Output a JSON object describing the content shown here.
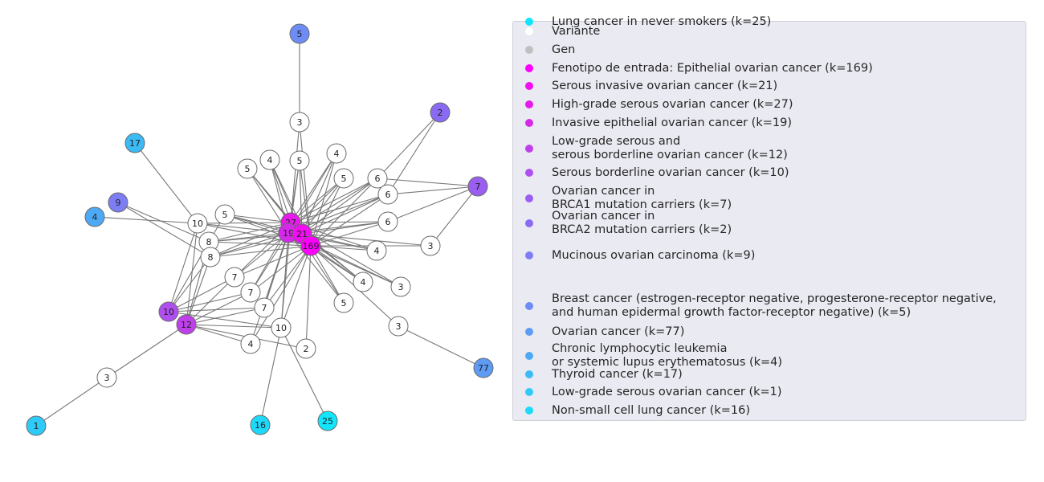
{
  "colors": {
    "variant": "#ffffff",
    "gene": "#c8c8c8",
    "edge": "#777777",
    "node_stroke": "#6b6b6b"
  },
  "legend": [
    {
      "label": "Variante",
      "color": "#ffffff"
    },
    {
      "label": "Gen",
      "color": "#c0c0c0"
    },
    {
      "label": "Fenotipo de entrada: Epithelial ovarian cancer (k=169)",
      "color": "#ff00ff"
    },
    {
      "label": "Serous invasive ovarian cancer (k=21)",
      "color": "#f20ef2"
    },
    {
      "label": "High-grade serous ovarian cancer (k=27)",
      "color": "#e61aeb"
    },
    {
      "label": "Invasive epithelial ovarian cancer (k=19)",
      "color": "#d529ea"
    },
    {
      "label": "Low-grade serous and\nserous borderline ovarian cancer (k=12)",
      "color": "#bf40ea"
    },
    {
      "label": "Serous borderline ovarian cancer (k=10)",
      "color": "#b04ff0"
    },
    {
      "label": "Ovarian cancer in\nBRCA1 mutation carriers (k=7)",
      "color": "#9a5ef0"
    },
    {
      "label": "Ovarian cancer in\nBRCA2 mutation carriers (k=2)",
      "color": "#8a6af2"
    },
    {
      "label": "Mucinous ovarian carcinoma (k=9)",
      "color": "#7d7df5"
    },
    {
      "label": "Breast cancer (estrogen-receptor negative, progesterone-receptor negative,\nand human epidermal growth factor-receptor negative) (k=5)",
      "color": "#6e8cf5"
    },
    {
      "label": "Ovarian cancer (k=77)",
      "color": "#5e9bf5"
    },
    {
      "label": "Chronic lymphocytic leukemia\nor systemic lupus erythematosus (k=4)",
      "color": "#4ea9f5"
    },
    {
      "label": "Thyroid cancer (k=17)",
      "color": "#3cbaf5"
    },
    {
      "label": "Low-grade serous ovarian cancer (k=1)",
      "color": "#2ecbf8"
    },
    {
      "label": "Non-small cell lung cancer (k=16)",
      "color": "#1ed9fa"
    },
    {
      "label": "Lung cancer in never smokers (k=25)",
      "color": "#12e6fc"
    }
  ],
  "graph": {
    "nodes": [
      {
        "id": "p5",
        "label": "5",
        "color": "#6e8cf5"
      },
      {
        "id": "p2",
        "label": "2",
        "color": "#8a6af2"
      },
      {
        "id": "p7",
        "label": "7",
        "color": "#9a5ef0"
      },
      {
        "id": "p17",
        "label": "17",
        "color": "#3cbaf5"
      },
      {
        "id": "p9",
        "label": "9",
        "color": "#7d7df5"
      },
      {
        "id": "p4",
        "label": "4",
        "color": "#4ea9f5"
      },
      {
        "id": "p10",
        "label": "10",
        "color": "#b04ff0"
      },
      {
        "id": "p12",
        "label": "12",
        "color": "#bf40ea"
      },
      {
        "id": "p1",
        "label": "1",
        "color": "#2ecbf8"
      },
      {
        "id": "p16",
        "label": "16",
        "color": "#1ed9fa"
      },
      {
        "id": "p25",
        "label": "25",
        "color": "#12e6fc"
      },
      {
        "id": "p77",
        "label": "77",
        "color": "#5e9bf5"
      },
      {
        "id": "p27",
        "label": "27",
        "color": "#e61aeb"
      },
      {
        "id": "p19",
        "label": "19",
        "color": "#d529ea"
      },
      {
        "id": "p21",
        "label": "21",
        "color": "#f20ef2"
      },
      {
        "id": "p169",
        "label": "169",
        "color": "#ff00ff"
      },
      {
        "id": "v3a",
        "label": "3",
        "color": "#ffffff"
      },
      {
        "id": "v4a",
        "label": "4",
        "color": "#ffffff"
      },
      {
        "id": "v5a",
        "label": "5",
        "color": "#ffffff"
      },
      {
        "id": "v4b",
        "label": "4",
        "color": "#ffffff"
      },
      {
        "id": "v5b",
        "label": "5",
        "color": "#ffffff"
      },
      {
        "id": "v5c",
        "label": "5",
        "color": "#ffffff"
      },
      {
        "id": "v6a",
        "label": "6",
        "color": "#ffffff"
      },
      {
        "id": "v6b",
        "label": "6",
        "color": "#ffffff"
      },
      {
        "id": "v6c",
        "label": "6",
        "color": "#ffffff"
      },
      {
        "id": "v10a",
        "label": "10",
        "color": "#ffffff"
      },
      {
        "id": "v5d",
        "label": "5",
        "color": "#ffffff"
      },
      {
        "id": "v8a",
        "label": "8",
        "color": "#ffffff"
      },
      {
        "id": "v8b",
        "label": "8",
        "color": "#ffffff"
      },
      {
        "id": "v4c",
        "label": "4",
        "color": "#ffffff"
      },
      {
        "id": "v3b",
        "label": "3",
        "color": "#ffffff"
      },
      {
        "id": "v7a",
        "label": "7",
        "color": "#ffffff"
      },
      {
        "id": "v7b",
        "label": "7",
        "color": "#ffffff"
      },
      {
        "id": "v7c",
        "label": "7",
        "color": "#ffffff"
      },
      {
        "id": "v4d",
        "label": "4",
        "color": "#ffffff"
      },
      {
        "id": "v3c",
        "label": "3",
        "color": "#ffffff"
      },
      {
        "id": "v5e",
        "label": "5",
        "color": "#ffffff"
      },
      {
        "id": "v3d",
        "label": "3",
        "color": "#ffffff"
      },
      {
        "id": "v10b",
        "label": "10",
        "color": "#ffffff"
      },
      {
        "id": "v4e",
        "label": "4",
        "color": "#ffffff"
      },
      {
        "id": "v2a",
        "label": "2",
        "color": "#ffffff"
      },
      {
        "id": "v3e",
        "label": "3",
        "color": "#ffffff"
      }
    ],
    "edges": [
      [
        "p5",
        "v3a"
      ],
      [
        "v3a",
        "p27"
      ],
      [
        "v3a",
        "p169"
      ],
      [
        "p2",
        "v6a"
      ],
      [
        "p2",
        "v6b"
      ],
      [
        "p7",
        "v6a"
      ],
      [
        "p7",
        "v6b"
      ],
      [
        "p7",
        "v6c"
      ],
      [
        "p7",
        "v3b"
      ],
      [
        "p17",
        "v10a"
      ],
      [
        "p9",
        "v8a"
      ],
      [
        "p9",
        "v8b"
      ],
      [
        "p4",
        "v10a"
      ],
      [
        "p1",
        "v3e"
      ],
      [
        "v3e",
        "p12"
      ],
      [
        "p16",
        "v10b"
      ],
      [
        "p25",
        "v10b"
      ],
      [
        "p77",
        "v3d"
      ],
      [
        "v3d",
        "p169"
      ],
      [
        "v3b",
        "p169"
      ],
      [
        "v3b",
        "p21"
      ],
      [
        "v4a",
        "p27"
      ],
      [
        "v4a",
        "p19"
      ],
      [
        "v4a",
        "p21"
      ],
      [
        "v4a",
        "p169"
      ],
      [
        "v5a",
        "p27"
      ],
      [
        "v5a",
        "p19"
      ],
      [
        "v5a",
        "p21"
      ],
      [
        "v5a",
        "p169"
      ],
      [
        "v4b",
        "p27"
      ],
      [
        "v4b",
        "p19"
      ],
      [
        "v4b",
        "p21"
      ],
      [
        "v4b",
        "p169"
      ],
      [
        "v5b",
        "p27"
      ],
      [
        "v5b",
        "p19"
      ],
      [
        "v5b",
        "p21"
      ],
      [
        "v5b",
        "p169"
      ],
      [
        "v5c",
        "p27"
      ],
      [
        "v5c",
        "p19"
      ],
      [
        "v5c",
        "p21"
      ],
      [
        "v5c",
        "p169"
      ],
      [
        "v6a",
        "p27"
      ],
      [
        "v6a",
        "p19"
      ],
      [
        "v6a",
        "p21"
      ],
      [
        "v6a",
        "p169"
      ],
      [
        "v6b",
        "p27"
      ],
      [
        "v6b",
        "p19"
      ],
      [
        "v6b",
        "p21"
      ],
      [
        "v6b",
        "p169"
      ],
      [
        "v6c",
        "p27"
      ],
      [
        "v6c",
        "p19"
      ],
      [
        "v6c",
        "p21"
      ],
      [
        "v6c",
        "p169"
      ],
      [
        "v10a",
        "p27"
      ],
      [
        "v10a",
        "p19"
      ],
      [
        "v10a",
        "p169"
      ],
      [
        "v10a",
        "p10"
      ],
      [
        "v10a",
        "p12"
      ],
      [
        "v5d",
        "p27"
      ],
      [
        "v5d",
        "p19"
      ],
      [
        "v5d",
        "p21"
      ],
      [
        "v5d",
        "p169"
      ],
      [
        "v5d",
        "p10"
      ],
      [
        "v8a",
        "p27"
      ],
      [
        "v8a",
        "p19"
      ],
      [
        "v8a",
        "p21"
      ],
      [
        "v8a",
        "p169"
      ],
      [
        "v8a",
        "p12"
      ],
      [
        "v8b",
        "p27"
      ],
      [
        "v8b",
        "p19"
      ],
      [
        "v8b",
        "p21"
      ],
      [
        "v8b",
        "p169"
      ],
      [
        "v8b",
        "p10"
      ],
      [
        "v8b",
        "p12"
      ],
      [
        "v4c",
        "p27"
      ],
      [
        "v4c",
        "p19"
      ],
      [
        "v4c",
        "p21"
      ],
      [
        "v4c",
        "p169"
      ],
      [
        "v7a",
        "p27"
      ],
      [
        "v7a",
        "p19"
      ],
      [
        "v7a",
        "p169"
      ],
      [
        "v7a",
        "p10"
      ],
      [
        "v7a",
        "p12"
      ],
      [
        "v7b",
        "p27"
      ],
      [
        "v7b",
        "p19"
      ],
      [
        "v7b",
        "p169"
      ],
      [
        "v7b",
        "p10"
      ],
      [
        "v7b",
        "p12"
      ],
      [
        "v7c",
        "p27"
      ],
      [
        "v7c",
        "p19"
      ],
      [
        "v7c",
        "p169"
      ],
      [
        "v7c",
        "p10"
      ],
      [
        "v7c",
        "p12"
      ],
      [
        "v4d",
        "p27"
      ],
      [
        "v4d",
        "p19"
      ],
      [
        "v4d",
        "p21"
      ],
      [
        "v4d",
        "p169"
      ],
      [
        "v3c",
        "p27"
      ],
      [
        "v3c",
        "p19"
      ],
      [
        "v3c",
        "p169"
      ],
      [
        "v5e",
        "p27"
      ],
      [
        "v5e",
        "p19"
      ],
      [
        "v5e",
        "p169"
      ],
      [
        "v10b",
        "p27"
      ],
      [
        "v10b",
        "p19"
      ],
      [
        "v10b",
        "p169"
      ],
      [
        "v10b",
        "p12"
      ],
      [
        "v10b",
        "p10"
      ],
      [
        "v4e",
        "p19"
      ],
      [
        "v4e",
        "p169"
      ],
      [
        "v4e",
        "p12"
      ],
      [
        "v2a",
        "p169"
      ],
      [
        "v2a",
        "p12"
      ],
      [
        "p27",
        "p19"
      ],
      [
        "p27",
        "p21"
      ],
      [
        "p19",
        "p21"
      ],
      [
        "p21",
        "p169"
      ],
      [
        "p19",
        "p169"
      ],
      [
        "p27",
        "p169"
      ]
    ]
  }
}
